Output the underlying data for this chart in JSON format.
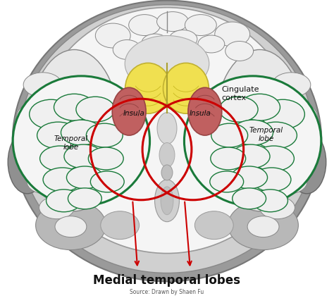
{
  "main_label": "Medial temporal lobes",
  "source_label": "Source: Drawn by Shaen Fu",
  "label_cingulate": "Cingulate\ncortex",
  "label_insula_left": "Insula",
  "label_insula_right": "Insula",
  "label_temporal_left": "Temporal\nlobe",
  "label_temporal_right": "Temporal\nlobe",
  "bg_color": "#ffffff",
  "skull_outer_color": "#a0a0a0",
  "skull_fill": "#b0b0b0",
  "brain_white_fill": "#f2f2f2",
  "brain_white_edge": "#888888",
  "gyri_edge": "#888888",
  "temporal_circle_color": "#cc0000",
  "temporal_green_color": "#1a7a3a",
  "insula_fill": "#c06060",
  "insula_edge": "#994444",
  "yellow_fill": "#f0e050",
  "yellow_edge": "#c0b030",
  "gray_structure": "#b0b0b0",
  "arrow_color": "#cc0000",
  "text_color": "#111111",
  "main_label_fontsize": 12,
  "source_fontsize": 5.5,
  "annotation_fontsize": 7.5,
  "cingulate_fontsize": 8,
  "fig_width": 4.74,
  "fig_height": 4.31,
  "dpi": 100
}
